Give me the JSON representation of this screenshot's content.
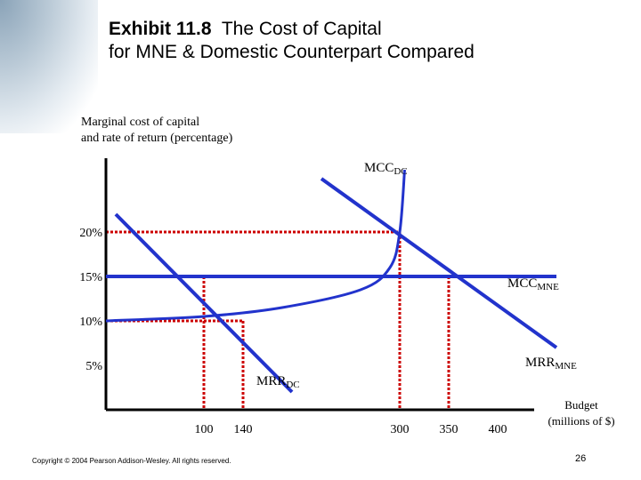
{
  "slide": {
    "title_bold": "Exhibit 11.8",
    "title_line1": "The Cost of Capital",
    "title_line2": "for MNE & Domestic Counterpart Compared",
    "copyright": "Copyright © 2004 Pearson Addison-Wesley. All rights reserved.",
    "page_number": "26"
  },
  "chart_data": {
    "type": "line",
    "ylabel_line1": "Marginal cost of capital",
    "ylabel_line2": "and rate of return (percentage)",
    "xlabel_line1": "Budget",
    "xlabel_line2": "(millions of $)",
    "y_ticks": [
      {
        "label": "20%",
        "value": 20
      },
      {
        "label": "15%",
        "value": 15
      },
      {
        "label": "10%",
        "value": 10
      },
      {
        "label": "5%",
        "value": 5
      }
    ],
    "x_ticks": [
      {
        "label": "100",
        "value": 100
      },
      {
        "label": "140",
        "value": 140
      },
      {
        "label": "300",
        "value": 300
      },
      {
        "label": "350",
        "value": 350
      },
      {
        "label": "400",
        "value": 400
      }
    ],
    "xlim": [
      0,
      450
    ],
    "ylim": [
      0,
      30
    ],
    "series": [
      {
        "name": "MCC",
        "subscript": "DC",
        "kind": "curve",
        "points": [
          [
            0,
            10
          ],
          [
            100,
            10.5
          ],
          [
            180,
            11.5
          ],
          [
            260,
            13.5
          ],
          [
            290,
            16
          ],
          [
            300,
            20
          ],
          [
            305,
            27
          ]
        ]
      },
      {
        "name": "MCC",
        "subscript": "MNE",
        "kind": "line",
        "points": [
          [
            0,
            15
          ],
          [
            460,
            15
          ]
        ]
      },
      {
        "name": "MRR",
        "subscript": "MNE",
        "kind": "line",
        "points": [
          [
            220,
            26
          ],
          [
            460,
            7
          ]
        ]
      },
      {
        "name": "MRR",
        "subscript": "DC",
        "kind": "line",
        "points": [
          [
            10,
            22
          ],
          [
            190,
            2
          ]
        ]
      }
    ],
    "reference_lines": [
      {
        "value_y": 20,
        "to_x": 300
      },
      {
        "value_y": 15,
        "to_x": 350
      },
      {
        "value_y": 10,
        "to_x": 140
      },
      {
        "value_y": 5,
        "to_x": 0
      }
    ],
    "drop_lines_x": [
      100,
      140,
      300,
      350
    ],
    "colors": {
      "curve": "#2233cc",
      "dotted": "#cc0000",
      "axis": "#000000"
    }
  }
}
